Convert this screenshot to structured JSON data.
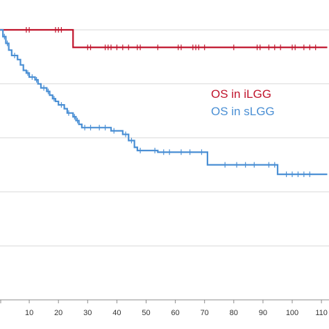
{
  "chart_data": {
    "type": "line",
    "title": "",
    "xlabel": "",
    "ylabel": "",
    "xlim": [
      0,
      112
    ],
    "ylim": [
      0,
      1.0
    ],
    "x_ticks": [
      10,
      20,
      30,
      40,
      50,
      60,
      70,
      80,
      90,
      100,
      110
    ],
    "y_gridlines": [
      0.0,
      0.2,
      0.4,
      0.6,
      0.8,
      1.0
    ],
    "grid": "horizontal",
    "legend_placement": "right, inside plot",
    "series": [
      {
        "name": "OS in iLGG",
        "color": "#c0142c",
        "step": true,
        "points": [
          [
            0,
            1.0
          ],
          [
            25,
            1.0
          ],
          [
            25,
            0.935
          ],
          [
            112,
            0.935
          ]
        ],
        "censor_x": [
          9,
          10,
          19,
          20,
          21,
          30,
          31,
          36,
          37,
          38,
          40,
          42,
          44,
          47,
          48,
          54,
          61,
          62,
          66,
          67,
          68,
          70,
          80,
          88,
          89,
          92,
          94,
          96,
          100,
          101,
          104,
          106,
          108
        ]
      },
      {
        "name": "OS in sLGG",
        "color": "#4a8fd4",
        "step": true,
        "points": [
          [
            0,
            1.0
          ],
          [
            1,
            0.975
          ],
          [
            2,
            0.95
          ],
          [
            3,
            0.925
          ],
          [
            4,
            0.905
          ],
          [
            6,
            0.89
          ],
          [
            7,
            0.87
          ],
          [
            8,
            0.85
          ],
          [
            9,
            0.84
          ],
          [
            10,
            0.825
          ],
          [
            12,
            0.815
          ],
          [
            13,
            0.8
          ],
          [
            14,
            0.785
          ],
          [
            16,
            0.772
          ],
          [
            17,
            0.758
          ],
          [
            18,
            0.745
          ],
          [
            19,
            0.735
          ],
          [
            20,
            0.722
          ],
          [
            22,
            0.708
          ],
          [
            23,
            0.692
          ],
          [
            25,
            0.678
          ],
          [
            26,
            0.664
          ],
          [
            27,
            0.65
          ],
          [
            28,
            0.638
          ],
          [
            38,
            0.626
          ],
          [
            42,
            0.613
          ],
          [
            44,
            0.59
          ],
          [
            46,
            0.565
          ],
          [
            47,
            0.553
          ],
          [
            54,
            0.547
          ],
          [
            71,
            0.5
          ],
          [
            95,
            0.465
          ]
        ],
        "censor_x": [
          1.5,
          2.5,
          5,
          9.5,
          11,
          12.5,
          15,
          16.5,
          18.5,
          21,
          23.5,
          25.5,
          26.5,
          29,
          31,
          34,
          36,
          39,
          43,
          45,
          48,
          53,
          56,
          58,
          62,
          65,
          69,
          77,
          81,
          84,
          87,
          92,
          94,
          98,
          100,
          102,
          104,
          106
        ]
      }
    ],
    "legend": [
      {
        "label": "OS in iLGG",
        "color": "#c0142c"
      },
      {
        "label": "OS in sLGG",
        "color": "#4a8fd4"
      }
    ]
  }
}
